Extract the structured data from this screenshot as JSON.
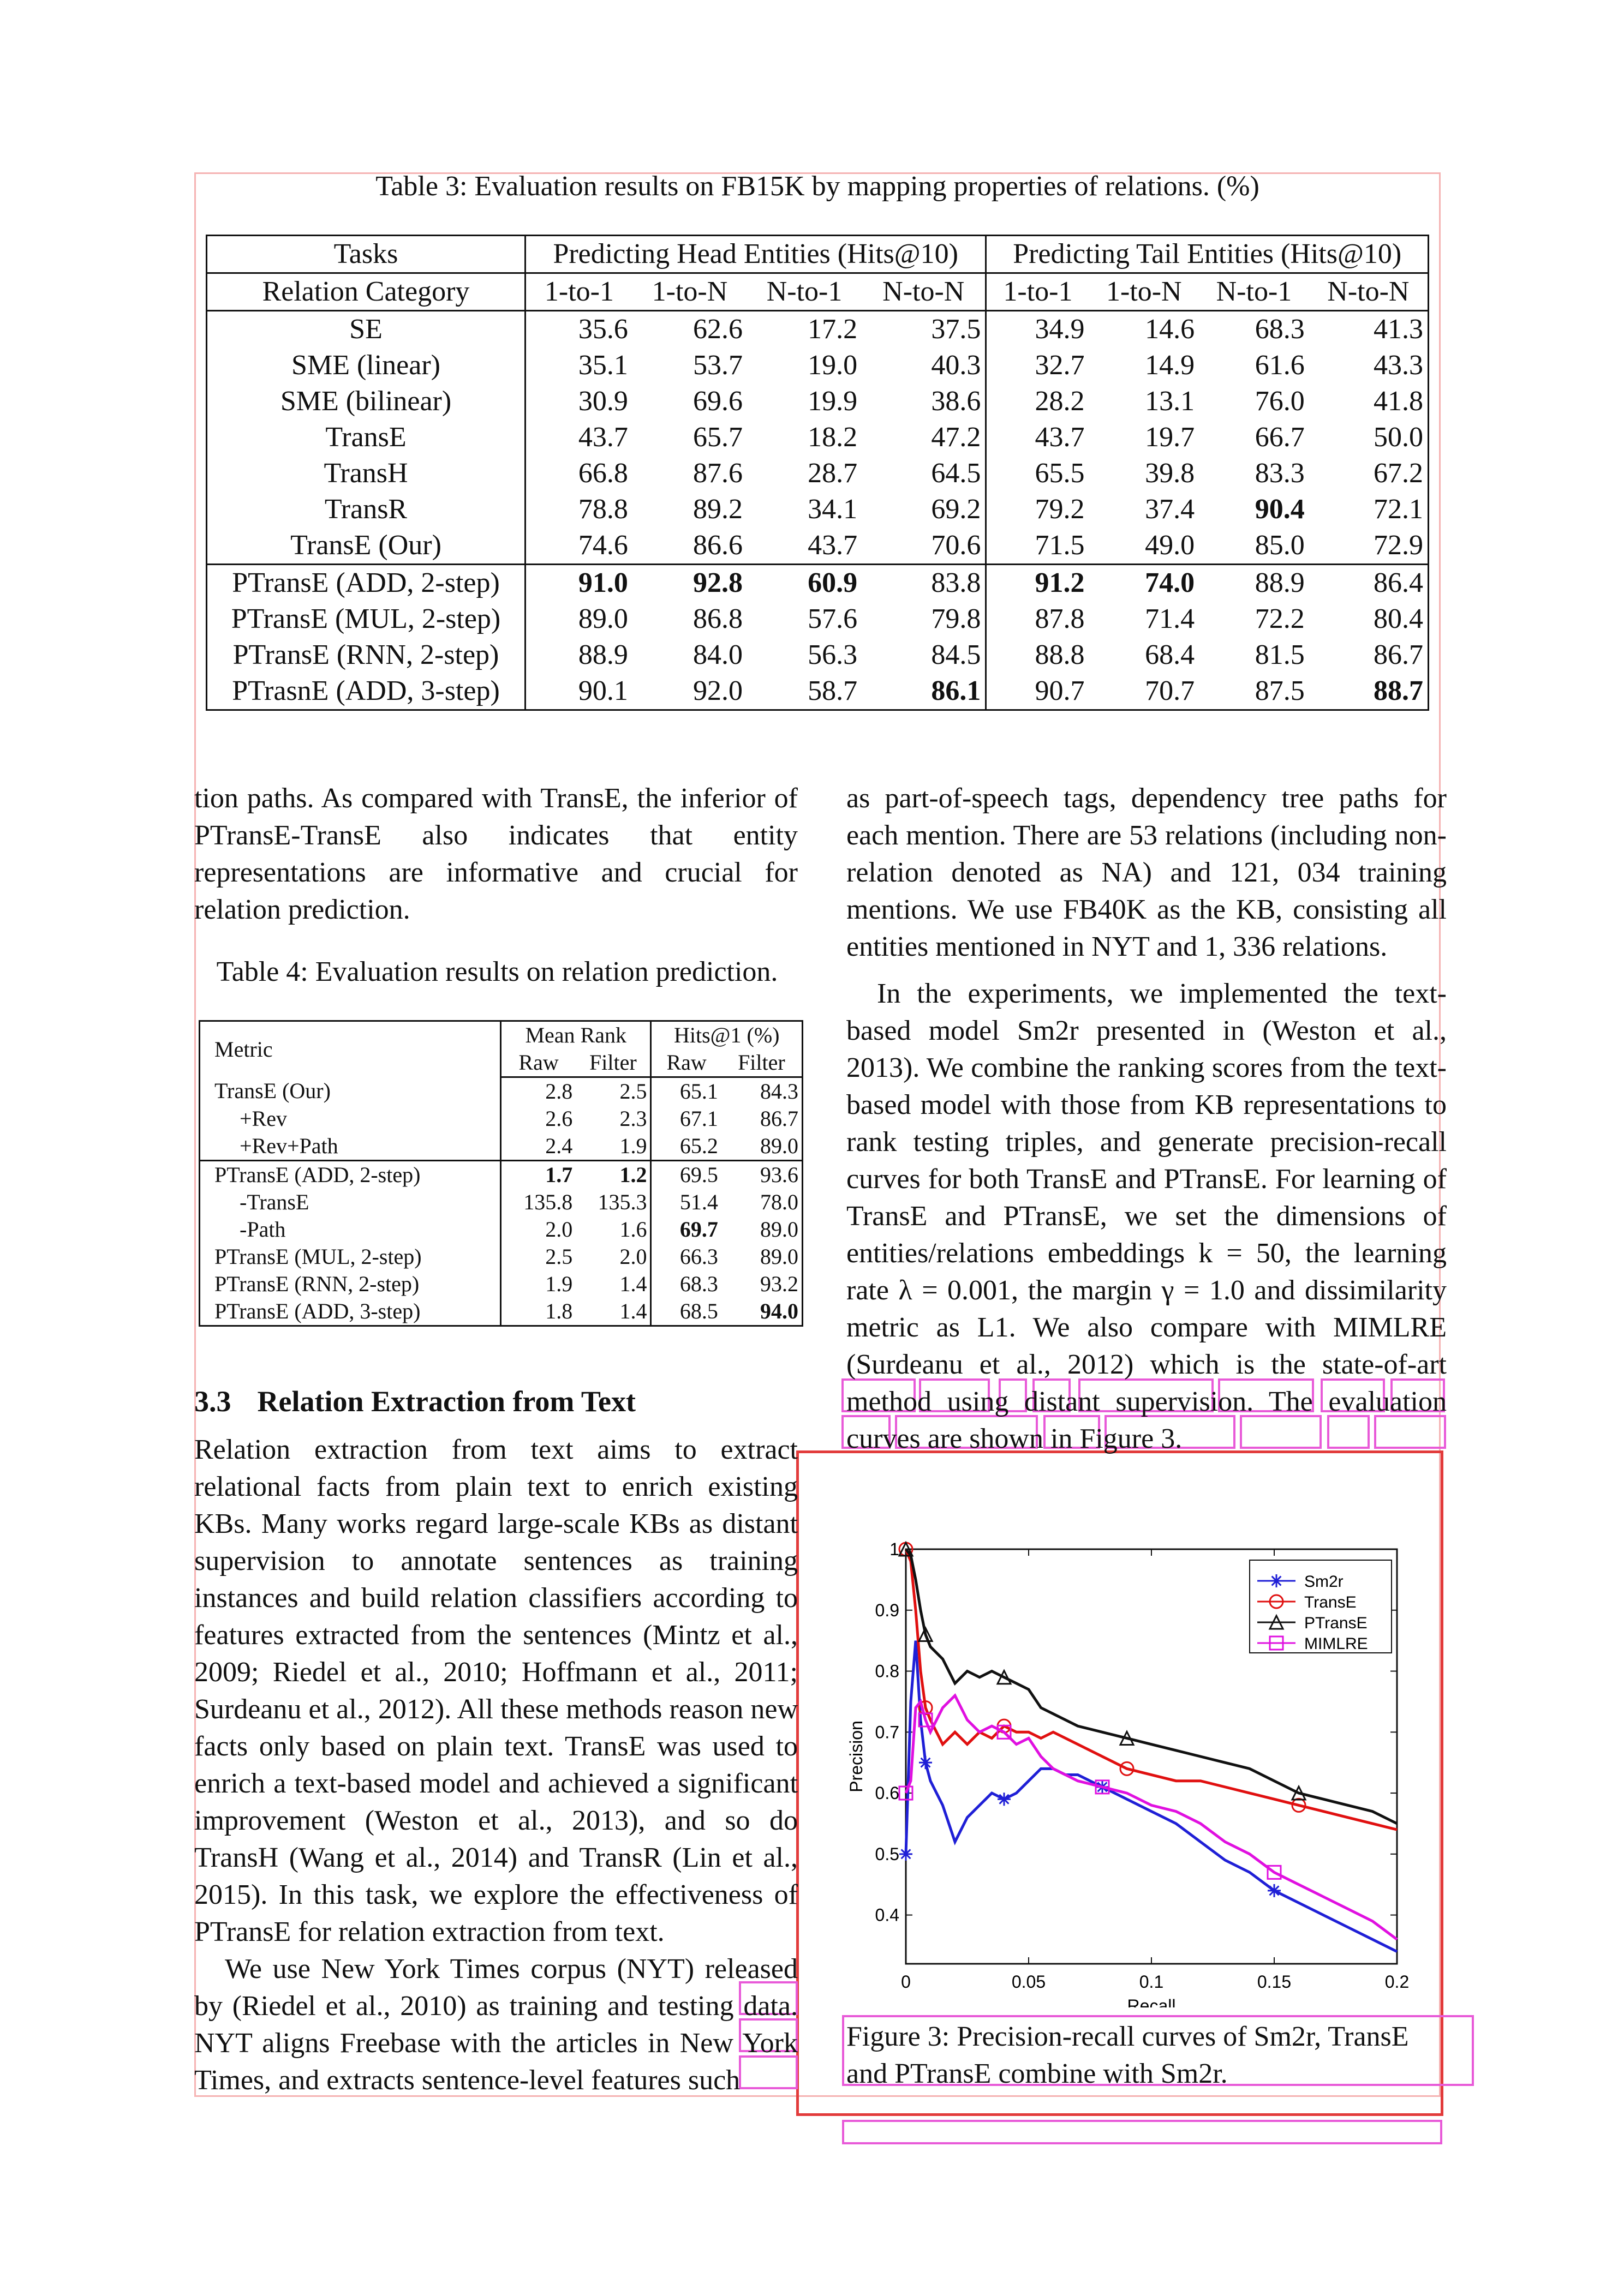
{
  "table3": {
    "caption": "Table 3: Evaluation results on FB15K by mapping properties of relations. (%)",
    "group_headers": [
      "Tasks",
      "Predicting Head Entities (Hits@10)",
      "Predicting Tail Entities (Hits@10)"
    ],
    "sub_headers": [
      "Relation Category",
      "1-to-1",
      "1-to-N",
      "N-to-1",
      "N-to-N",
      "1-to-1",
      "1-to-N",
      "N-to-1",
      "N-to-N"
    ],
    "rows": [
      [
        "SE",
        "35.6",
        "62.6",
        "17.2",
        "37.5",
        "34.9",
        "14.6",
        "68.3",
        "41.3"
      ],
      [
        "SME (linear)",
        "35.1",
        "53.7",
        "19.0",
        "40.3",
        "32.7",
        "14.9",
        "61.6",
        "43.3"
      ],
      [
        "SME (bilinear)",
        "30.9",
        "69.6",
        "19.9",
        "38.6",
        "28.2",
        "13.1",
        "76.0",
        "41.8"
      ],
      [
        "TransE",
        "43.7",
        "65.7",
        "18.2",
        "47.2",
        "43.7",
        "19.7",
        "66.7",
        "50.0"
      ],
      [
        "TransH",
        "66.8",
        "87.6",
        "28.7",
        "64.5",
        "65.5",
        "39.8",
        "83.3",
        "67.2"
      ],
      [
        "TransR",
        "78.8",
        "89.2",
        "34.1",
        "69.2",
        "79.2",
        "37.4",
        "90.4",
        "72.1"
      ],
      [
        "TransE (Our)",
        "74.6",
        "86.6",
        "43.7",
        "70.6",
        "71.5",
        "49.0",
        "85.0",
        "72.9"
      ],
      [
        "PTransE (ADD, 2-step)",
        "91.0",
        "92.8",
        "60.9",
        "83.8",
        "91.2",
        "74.0",
        "88.9",
        "86.4"
      ],
      [
        "PTransE (MUL, 2-step)",
        "89.0",
        "86.8",
        "57.6",
        "79.8",
        "87.8",
        "71.4",
        "72.2",
        "80.4"
      ],
      [
        "PTransE (RNN, 2-step)",
        "88.9",
        "84.0",
        "56.3",
        "84.5",
        "88.8",
        "68.4",
        "81.5",
        "86.7"
      ],
      [
        "PTrasnE (ADD, 3-step)",
        "90.1",
        "92.0",
        "58.7",
        "86.1",
        "90.7",
        "70.7",
        "87.5",
        "88.7"
      ]
    ]
  },
  "left_col": {
    "p1": "tion paths. As compared with TransE, the inferior of PTransE-TransE also indicates that entity representations are informative and crucial for relation prediction.",
    "section_number": "3.3",
    "section_title": "Relation Extraction from Text",
    "p2": "Relation extraction from text aims to extract relational facts from plain text to enrich existing KBs. Many works regard large-scale KBs as distant supervision to annotate sentences as training instances and build relation classifiers according to features extracted from the sentences (Mintz et al., 2009; Riedel et al., 2010; Hoffmann et al., 2011; Surdeanu et al., 2012). All these methods reason new facts only based on plain text. TransE was used to enrich a text-based model and achieved a significant improvement (Weston et al., 2013), and so do TransH (Wang et al., 2014) and TransR (Lin et al., 2015). In this task, we explore the effectiveness of PTransE for relation extraction from text.",
    "p3": "We use New York Times corpus (NYT) released by (Riedel et al., 2010) as training and testing data. NYT aligns Freebase with the articles in New York Times, and extracts sentence-level features such"
  },
  "table4": {
    "caption": "Table 4: Evaluation results on relation prediction.",
    "metric_label": "Metric",
    "group_headers": [
      "Mean Rank",
      "Hits@1 (%)"
    ],
    "sub_headers": [
      "Raw",
      "Filter",
      "Raw",
      "Filter"
    ],
    "rows": [
      [
        "TransE (Our)",
        "2.8",
        "2.5",
        "65.1",
        "84.3"
      ],
      [
        "+Rev",
        "2.6",
        "2.3",
        "67.1",
        "86.7"
      ],
      [
        "+Rev+Path",
        "2.4",
        "1.9",
        "65.2",
        "89.0"
      ],
      [
        "PTransE (ADD, 2-step)",
        "1.7",
        "1.2",
        "69.5",
        "93.6"
      ],
      [
        "-TransE",
        "135.8",
        "135.3",
        "51.4",
        "78.0"
      ],
      [
        "-Path",
        "2.0",
        "1.6",
        "69.7",
        "89.0"
      ],
      [
        "PTransE (MUL, 2-step)",
        "2.5",
        "2.0",
        "66.3",
        "89.0"
      ],
      [
        "PTransE (RNN, 2-step)",
        "1.9",
        "1.4",
        "68.3",
        "93.2"
      ],
      [
        "PTransE (ADD, 3-step)",
        "1.8",
        "1.4",
        "68.5",
        "94.0"
      ]
    ]
  },
  "right_col": {
    "p1": "as part-of-speech tags, dependency tree paths for each mention. There are 53 relations (including non-relation denoted as NA) and 121, 034 training mentions. We use FB40K as the KB, consisting all entities mentioned in NYT and 1, 336 relations.",
    "p2": "In the experiments, we implemented the text-based model Sm2r presented in (Weston et al., 2013). We combine the ranking scores from the text-based model with those from KB representations to rank testing triples, and generate precision-recall curves for both TransE and PTransE. For learning of TransE and PTransE, we set the dimensions of entities/relations embeddings k = 50, the learning rate λ = 0.001, the margin γ = 1.0 and dissimilarity metric as L1. We also compare with MIMLRE (Surdeanu et al., 2012) which is the state-of-art method using distant supervision. The evaluation curves are shown in Figure 3."
  },
  "figure": {
    "caption": "Figure 3: Precision-recall curves of Sm2r, TransE and PTransE combine with Sm2r."
  },
  "chart_data": {
    "type": "line",
    "title": "",
    "xlabel": "Recall",
    "ylabel": "Precision",
    "xlim": [
      0,
      0.2
    ],
    "ylim": [
      0.32,
      1.0
    ],
    "xticks": [
      "0",
      "0.05",
      "0.1",
      "0.15",
      "0.2"
    ],
    "yticks": [
      "0.4",
      "0.5",
      "0.6",
      "0.7",
      "0.8",
      "0.9",
      "1"
    ],
    "legend_position": "top-right",
    "series": [
      {
        "name": "Sm2r",
        "color": "#1f1fd6",
        "marker": "asterisk",
        "x": [
          0,
          0.002,
          0.004,
          0.006,
          0.008,
          0.01,
          0.015,
          0.02,
          0.025,
          0.03,
          0.035,
          0.04,
          0.045,
          0.05,
          0.055,
          0.06,
          0.065,
          0.07,
          0.08,
          0.09,
          0.1,
          0.11,
          0.12,
          0.13,
          0.14,
          0.15,
          0.16,
          0.17,
          0.18,
          0.19,
          0.2
        ],
        "y": [
          0.5,
          0.75,
          0.85,
          0.72,
          0.65,
          0.62,
          0.58,
          0.52,
          0.56,
          0.58,
          0.6,
          0.59,
          0.6,
          0.62,
          0.64,
          0.64,
          0.63,
          0.63,
          0.61,
          0.59,
          0.57,
          0.55,
          0.52,
          0.49,
          0.47,
          0.44,
          0.42,
          0.4,
          0.38,
          0.36,
          0.34
        ]
      },
      {
        "name": "TransE",
        "color": "#e01010",
        "marker": "circle",
        "x": [
          0,
          0.002,
          0.004,
          0.006,
          0.008,
          0.01,
          0.015,
          0.02,
          0.025,
          0.03,
          0.035,
          0.04,
          0.045,
          0.05,
          0.055,
          0.06,
          0.07,
          0.08,
          0.09,
          0.1,
          0.11,
          0.12,
          0.13,
          0.14,
          0.15,
          0.16,
          0.17,
          0.18,
          0.19,
          0.2
        ],
        "y": [
          1.0,
          0.98,
          0.9,
          0.8,
          0.74,
          0.72,
          0.68,
          0.7,
          0.68,
          0.7,
          0.69,
          0.71,
          0.7,
          0.7,
          0.69,
          0.7,
          0.68,
          0.66,
          0.64,
          0.63,
          0.62,
          0.62,
          0.61,
          0.6,
          0.59,
          0.58,
          0.57,
          0.56,
          0.55,
          0.54
        ]
      },
      {
        "name": "PTransE",
        "color": "#111111",
        "marker": "triangle",
        "x": [
          0,
          0.002,
          0.004,
          0.006,
          0.008,
          0.01,
          0.015,
          0.02,
          0.025,
          0.03,
          0.035,
          0.04,
          0.045,
          0.05,
          0.055,
          0.06,
          0.07,
          0.08,
          0.09,
          0.1,
          0.11,
          0.12,
          0.13,
          0.14,
          0.15,
          0.16,
          0.17,
          0.18,
          0.19,
          0.2
        ],
        "y": [
          1.0,
          0.99,
          0.95,
          0.9,
          0.86,
          0.84,
          0.82,
          0.78,
          0.8,
          0.79,
          0.8,
          0.79,
          0.78,
          0.77,
          0.74,
          0.73,
          0.71,
          0.7,
          0.69,
          0.68,
          0.67,
          0.66,
          0.65,
          0.64,
          0.62,
          0.6,
          0.59,
          0.58,
          0.57,
          0.55
        ]
      },
      {
        "name": "MIMLRE",
        "color": "#e010e0",
        "marker": "square",
        "x": [
          0,
          0.002,
          0.004,
          0.006,
          0.008,
          0.01,
          0.015,
          0.02,
          0.025,
          0.03,
          0.035,
          0.04,
          0.045,
          0.05,
          0.055,
          0.06,
          0.065,
          0.07,
          0.08,
          0.09,
          0.1,
          0.11,
          0.12,
          0.13,
          0.14,
          0.15,
          0.16,
          0.17,
          0.18,
          0.19,
          0.2
        ],
        "y": [
          0.6,
          0.62,
          0.74,
          0.75,
          0.72,
          0.7,
          0.74,
          0.76,
          0.72,
          0.7,
          0.71,
          0.7,
          0.68,
          0.69,
          0.66,
          0.64,
          0.63,
          0.62,
          0.61,
          0.6,
          0.58,
          0.57,
          0.55,
          0.52,
          0.5,
          0.47,
          0.45,
          0.43,
          0.41,
          0.39,
          0.36
        ]
      }
    ]
  }
}
